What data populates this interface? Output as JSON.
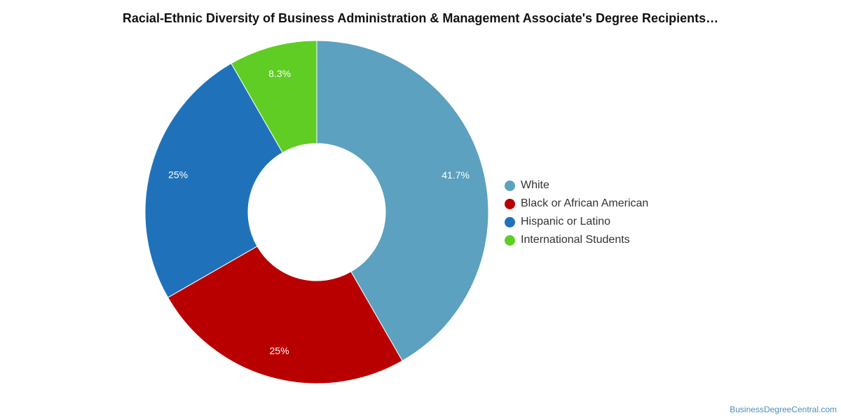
{
  "chart_data": {
    "type": "pie",
    "title": "Racial-Ethnic Diversity of Business Administration & Management Associate's Degree Recipients…",
    "donut": true,
    "slices": [
      {
        "name": "White",
        "value": 41.7,
        "label": "41.7%",
        "color": "#5ca1bf"
      },
      {
        "name": "Black or African American",
        "value": 25,
        "label": "25%",
        "color": "#b90000"
      },
      {
        "name": "Hispanic or Latino",
        "value": 25,
        "label": "25%",
        "color": "#1f72ba"
      },
      {
        "name": "International Students",
        "value": 8.3,
        "label": "8.3%",
        "color": "#5fcd24"
      }
    ],
    "legend_position": "right"
  },
  "source_text": "BusinessDegreeCentral.com"
}
